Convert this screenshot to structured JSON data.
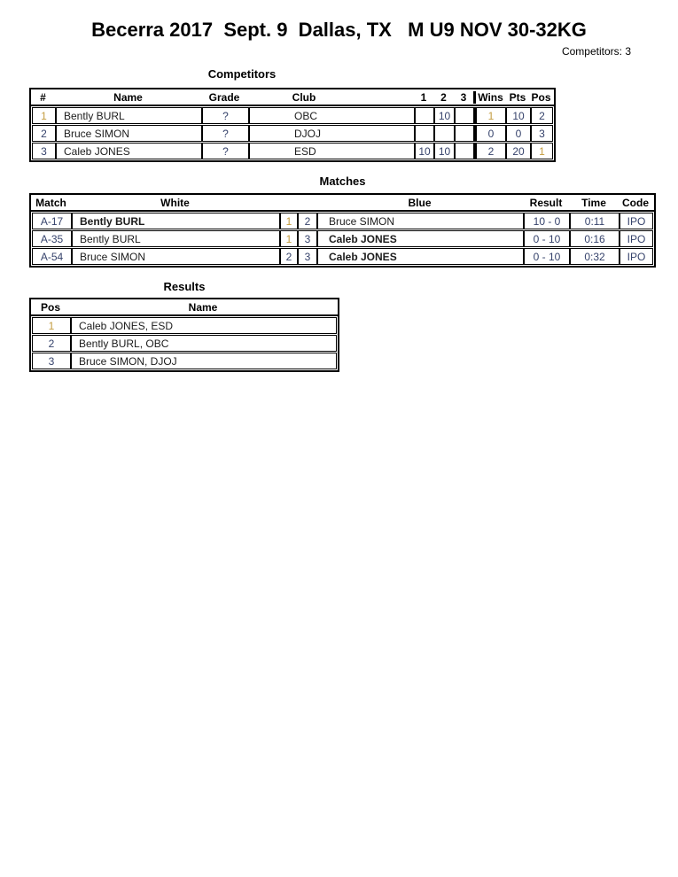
{
  "page": {
    "title": "Becerra 2017  Sept. 9  Dallas, TX   M U9 NOV 30-32KG",
    "competitors_count": "Competitors: 3"
  },
  "colors": {
    "text": "#1c1c1c",
    "numeric": "#35426b",
    "one_highlight": "#c49c3f",
    "border": "#000000",
    "background": "#ffffff"
  },
  "competitors": {
    "title": "Competitors",
    "headers": [
      "#",
      "Name",
      "Grade",
      "Club",
      "1",
      "2",
      "3",
      "Wins",
      "Pts",
      "Pos"
    ],
    "rows": [
      {
        "num": "1",
        "name": "Bently BURL",
        "grade": "?",
        "club": "OBC",
        "s1": "",
        "s2": "10",
        "s3": "",
        "wins": "1",
        "pts": "10",
        "pos": "2"
      },
      {
        "num": "2",
        "name": "Bruce SIMON",
        "grade": "?",
        "club": "DJOJ",
        "s1": "",
        "s2": "",
        "s3": "",
        "wins": "0",
        "pts": "0",
        "pos": "3"
      },
      {
        "num": "3",
        "name": "Caleb JONES",
        "grade": "?",
        "club": "ESD",
        "s1": "10",
        "s2": "10",
        "s3": "",
        "wins": "2",
        "pts": "20",
        "pos": "1"
      }
    ]
  },
  "matches": {
    "title": "Matches",
    "headers": {
      "match": "Match",
      "white": "White",
      "blue": "Blue",
      "result": "Result",
      "time": "Time",
      "code": "Code"
    },
    "rows": [
      {
        "id": "A-17",
        "white": "Bently BURL",
        "white_winner": true,
        "white_num": "1",
        "blue_num": "2",
        "blue": "Bruce SIMON",
        "blue_winner": false,
        "result": "10 - 0",
        "time": "0:11",
        "code": "IPO"
      },
      {
        "id": "A-35",
        "white": "Bently BURL",
        "white_winner": false,
        "white_num": "1",
        "blue_num": "3",
        "blue": "Caleb JONES",
        "blue_winner": true,
        "result": "0 - 10",
        "time": "0:16",
        "code": "IPO"
      },
      {
        "id": "A-54",
        "white": "Bruce SIMON",
        "white_winner": false,
        "white_num": "2",
        "blue_num": "3",
        "blue": "Caleb JONES",
        "blue_winner": true,
        "result": "0 - 10",
        "time": "0:32",
        "code": "IPO"
      }
    ]
  },
  "results": {
    "title": "Results",
    "headers": [
      "Pos",
      "Name"
    ],
    "rows": [
      {
        "pos": "1",
        "name": "Caleb JONES, ESD"
      },
      {
        "pos": "2",
        "name": "Bently BURL, OBC"
      },
      {
        "pos": "3",
        "name": "Bruce SIMON, DJOJ"
      }
    ]
  }
}
